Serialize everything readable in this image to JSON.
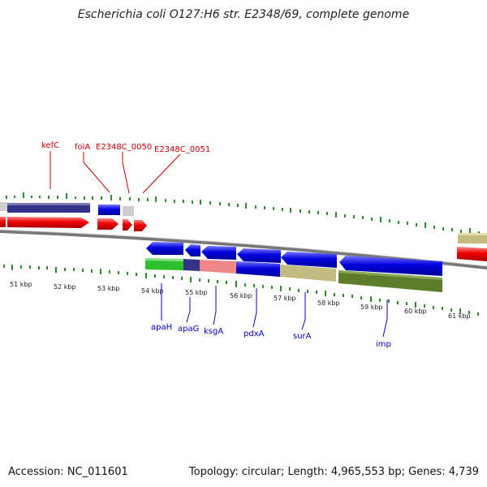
{
  "header": {
    "title": "Escherichia coli O127:H6 str. E2348/69, complete genome"
  },
  "footer": {
    "accession": "Accession: NC_011601",
    "topology": "Topology: circular; Length: 4,965,553 bp; Genes: 4,739"
  },
  "map": {
    "kbp_labels": [
      "51 kbp",
      "52 kbp",
      "53 kbp",
      "54 kbp",
      "55 kbp",
      "56 kbp",
      "57 kbp",
      "58 kbp",
      "59 kbp",
      "60 kbp",
      "61 kbp"
    ],
    "top_genes": [
      "kefC",
      "folA",
      "E2348C_0050",
      "E2348C_0051"
    ],
    "bottom_genes": [
      "apaH",
      "apaG",
      "ksgA",
      "pdxA",
      "surA",
      "imp"
    ],
    "colors": {
      "forward_cds": "#ee0000",
      "reverse_cds": "#0000dd",
      "tick_green": "#2e8b2e",
      "label_red": "#cc0000",
      "label_blue": "#0000cc",
      "backbone": "#888888"
    }
  }
}
